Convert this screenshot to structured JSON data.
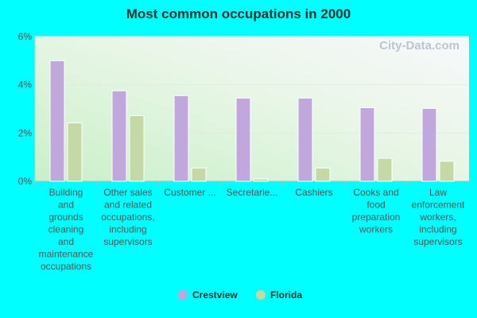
{
  "chart_data": {
    "type": "bar",
    "title": "Most common occupations in 2000",
    "xlabel": "",
    "ylabel": "",
    "unit": "%",
    "ylim": [
      0,
      6
    ],
    "yticks": [
      "0%",
      "2%",
      "4%",
      "6%"
    ],
    "grid": true,
    "legend_position": "bottom",
    "watermark": "City-Data.com",
    "categories": [
      [
        "Building",
        "and",
        "grounds",
        "cleaning",
        "and",
        "maintenance",
        "occupations"
      ],
      [
        "Other sales",
        "and related",
        "occupations,",
        "including",
        "supervisors"
      ],
      [
        "Customer ..."
      ],
      [
        "Secretarie..."
      ],
      [
        "Cashiers"
      ],
      [
        "Cooks and",
        "food",
        "preparation",
        "workers"
      ],
      [
        "Law",
        "enforcement",
        "workers,",
        "including",
        "supervisors"
      ]
    ],
    "series": [
      {
        "name": "Crestview",
        "color": "#c0a8dc",
        "values": [
          5.0,
          3.75,
          3.55,
          3.45,
          3.45,
          3.05,
          3.02
        ]
      },
      {
        "name": "Florida",
        "color": "#c5d9a6",
        "values": [
          2.42,
          2.72,
          0.55,
          0.1,
          0.55,
          0.95,
          0.83
        ]
      }
    ]
  }
}
